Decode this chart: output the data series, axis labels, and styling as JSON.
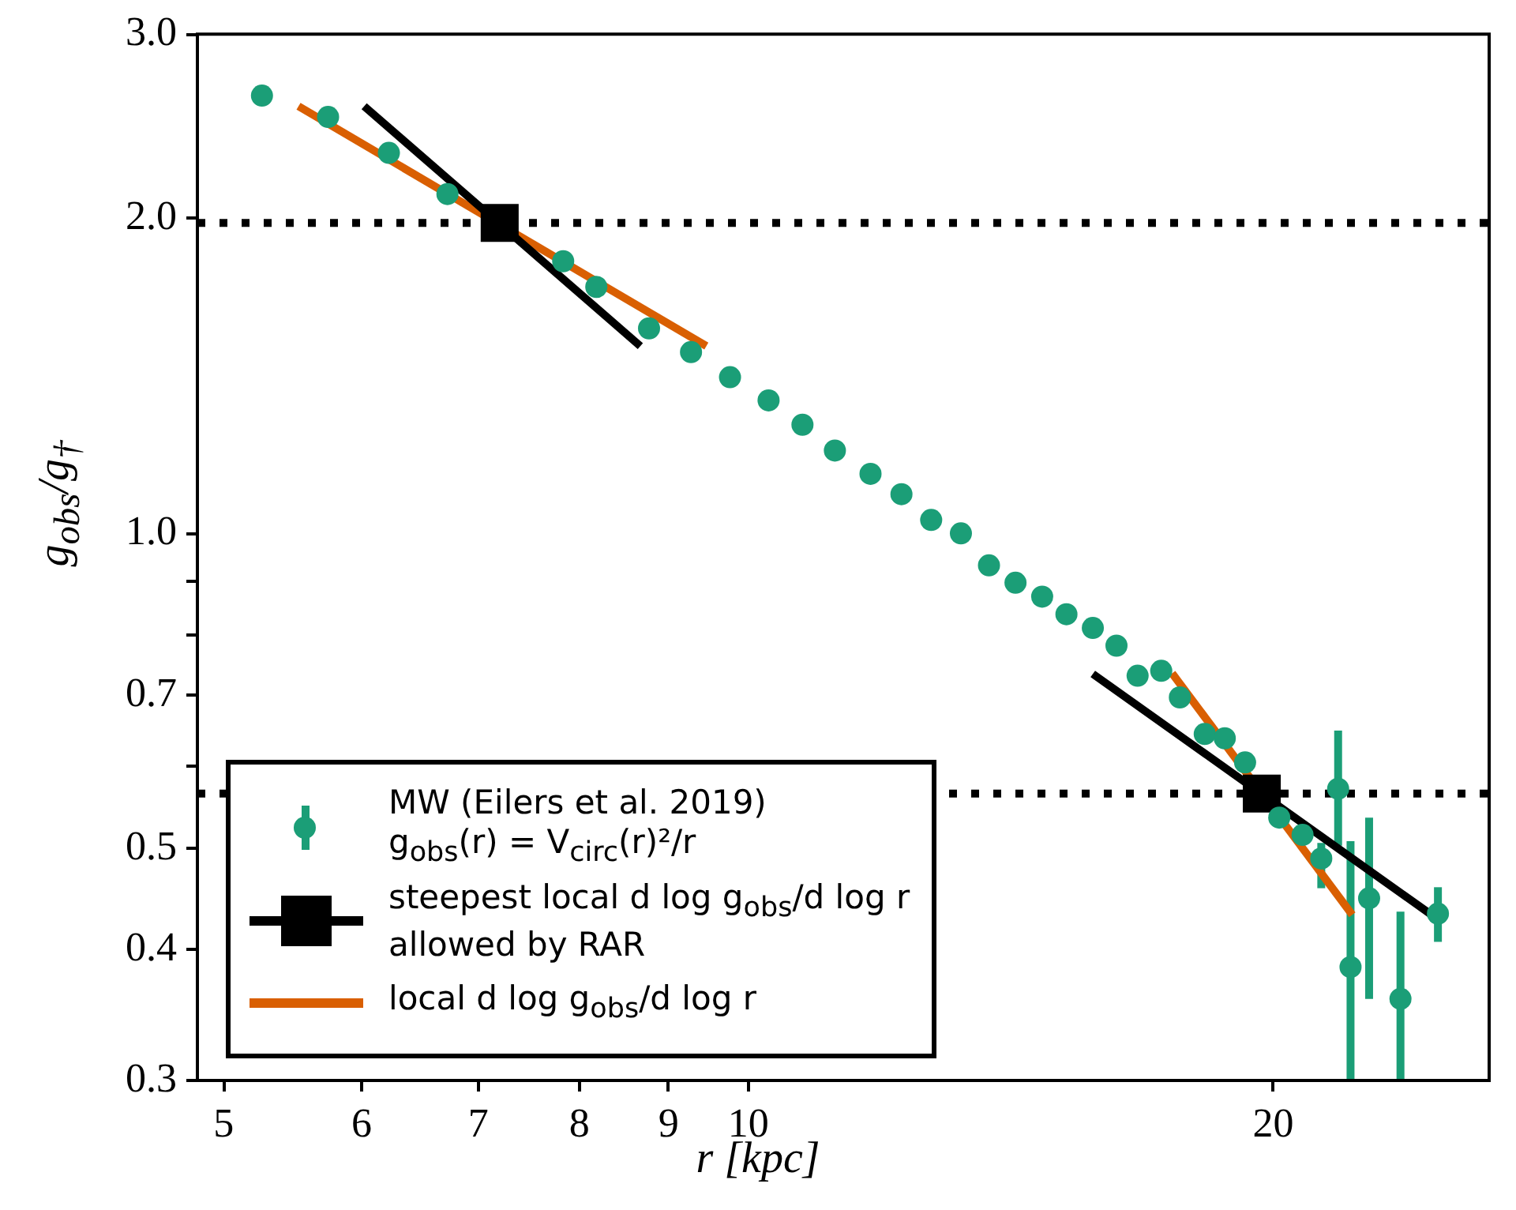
{
  "chart_data": {
    "type": "scatter",
    "xlabel": "r [kpc]",
    "ylabel": "g$_{obs}$/g$_{†}$",
    "log": "xy",
    "grid": false,
    "legend": "bottom left",
    "xlim": [
      4.83,
      26.6
    ],
    "xticks": [
      5,
      6,
      7,
      8,
      9,
      10,
      20
    ],
    "ylim": [
      0.3,
      3.0
    ],
    "yticks": [
      0.3,
      0.4,
      0.5,
      {
        "value": 0.6,
        "label": null
      },
      0.7,
      {
        "value": 0.8,
        "label": null
      },
      {
        "value": 0.9,
        "label": null
      },
      {
        "value": 1,
        "label": "1.0"
      },
      {
        "value": 2,
        "label": "2.0"
      },
      {
        "value": 3,
        "label": "3.0"
      }
    ],
    "ref_lines": [
      {
        "axis": "y",
        "value": 1.98,
        "color": "#000000",
        "line_style": "dotted"
      },
      {
        "axis": "y",
        "value": 0.564,
        "color": "#000000",
        "line_style": "dotted"
      }
    ],
    "series": [
      {
        "name": "MW (Eilers et al. 2019)\ng$_{obs}$(r) = V$_{circ}$(r)²/r",
        "marker": "circle",
        "color": "#1b9e77",
        "x": [
          5.26,
          5.74,
          6.22,
          6.72,
          7.83,
          8.18,
          8.77,
          9.27,
          9.76,
          10.27,
          10.74,
          11.21,
          11.75,
          12.24,
          12.73,
          13.24,
          13.74,
          14.23,
          14.74,
          15.22,
          15.76,
          16.26,
          16.72,
          17.25,
          17.68,
          18.27,
          18.76,
          19.27,
          20.16,
          20.79,
          21.31,
          21.79,
          22.15,
          22.7,
          23.66,
          24.86
        ],
        "values": [
          2.62,
          2.5,
          2.31,
          2.11,
          1.82,
          1.72,
          1.57,
          1.49,
          1.41,
          1.34,
          1.27,
          1.2,
          1.14,
          1.09,
          1.03,
          1.0,
          0.932,
          0.897,
          0.87,
          0.837,
          0.812,
          0.781,
          0.731,
          0.739,
          0.697,
          0.643,
          0.637,
          0.604,
          0.535,
          0.515,
          0.489,
          0.57,
          0.385,
          0.448,
          0.359,
          0.433
        ],
        "errors": [
          null,
          null,
          null,
          null,
          null,
          null,
          null,
          null,
          null,
          null,
          null,
          null,
          null,
          null,
          null,
          null,
          null,
          null,
          null,
          null,
          null,
          null,
          null,
          null,
          null,
          null,
          null,
          null,
          null,
          null,
          [
            0.458,
            0.506
          ],
          [
            0.503,
            0.648
          ],
          [
            0.3,
            0.508
          ],
          [
            0.359,
            0.535
          ],
          [
            0.3,
            0.435
          ],
          [
            0.407,
            0.459
          ]
        ]
      },
      {
        "type": "line",
        "color": "#000000",
        "x": [
          6.02,
          8.67
        ],
        "values": [
          2.56,
          1.51
        ]
      },
      {
        "type": "line",
        "color": "#000000",
        "x": [
          15.76,
          24.6
        ],
        "values": [
          0.734,
          0.433
        ]
      },
      {
        "name": "steepest local d log g$_{obs}$/d log r\nallowed by RAR",
        "marker": "square",
        "color": "#000000",
        "x": [
          7.2,
          19.7
        ],
        "values": [
          1.98,
          0.564
        ]
      },
      {
        "name": "local d log g$_{obs}$/d log r",
        "type": "line",
        "color": "#d95f02",
        "x": [
          5.52,
          9.46
        ],
        "values": [
          2.56,
          1.51
        ]
      },
      {
        "type": "line",
        "color": "#d95f02",
        "x": [
          17.5,
          22.2
        ],
        "values": [
          0.735,
          0.432
        ]
      }
    ]
  }
}
